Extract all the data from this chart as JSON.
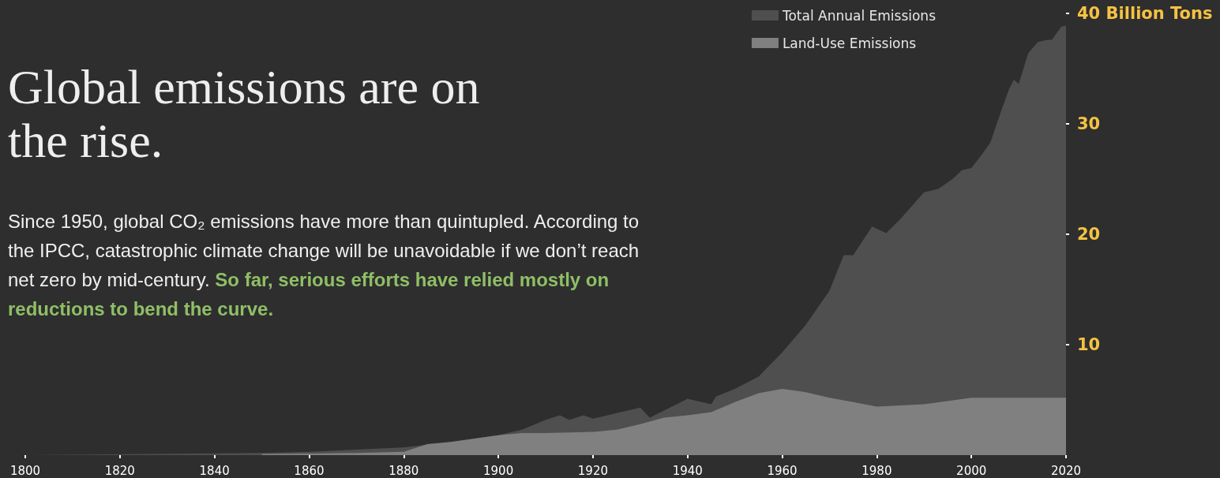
{
  "chart_data": {
    "type": "area",
    "title": "Global emissions are on the rise.",
    "subtitle": "Since 1950, global CO₂ emissions have more than quintupled. According to the IPCC, catastrophic climate change will be unavoidable if we don’t reach net zero by mid-century.",
    "annotations": [
      "So far, serious efforts have relied mostly on reductions to bend the curve."
    ],
    "xlim": [
      1800,
      2020
    ],
    "xticks": [
      1800,
      1820,
      1840,
      1860,
      1880,
      1900,
      1920,
      1940,
      1960,
      1980,
      2000,
      2020
    ],
    "ylim": [
      0,
      40
    ],
    "yticks": [
      10,
      20,
      30,
      {
        "value": 40,
        "label": "40 Billion Tons"
      }
    ],
    "legend": "top right",
    "grid": false,
    "series": [
      {
        "name": "Total Annual Emissions",
        "color": "#4f4f4f",
        "x": [
          1800,
          1850,
          1860,
          1870,
          1880,
          1890,
          1900,
          1905,
          1910,
          1913,
          1915,
          1918,
          1920,
          1925,
          1930,
          1932,
          1940,
          1945,
          1946,
          1950,
          1955,
          1960,
          1965,
          1970,
          1973,
          1975,
          1979,
          1982,
          1985,
          1990,
          1993,
          1996,
          1998,
          2000,
          2002,
          2004,
          2006,
          2008,
          2009,
          2010,
          2012,
          2014,
          2016,
          2017,
          2019,
          2020
        ],
        "values": [
          0,
          0.2,
          0.3,
          0.5,
          0.7,
          1.2,
          1.8,
          2.3,
          3.2,
          3.6,
          3.2,
          3.6,
          3.3,
          3.8,
          4.3,
          3.4,
          5.1,
          4.6,
          5.3,
          6.0,
          7.1,
          9.3,
          11.8,
          14.9,
          18.1,
          18.1,
          20.7,
          20.1,
          21.4,
          23.8,
          24.1,
          25.0,
          25.8,
          26.0,
          27.1,
          28.3,
          30.8,
          33.2,
          34.0,
          33.6,
          36.4,
          37.4,
          37.6,
          37.6,
          38.8,
          38.9
        ]
      },
      {
        "name": "Land-Use Emissions",
        "color": "#808080",
        "x": [
          1850,
          1860,
          1870,
          1880,
          1885,
          1890,
          1895,
          1900,
          1905,
          1910,
          1920,
          1925,
          1930,
          1935,
          1940,
          1945,
          1950,
          1955,
          1960,
          1965,
          1970,
          1975,
          1980,
          1990,
          2000,
          2020
        ],
        "values": [
          0.1,
          0.15,
          0.2,
          0.3,
          1.0,
          1.2,
          1.5,
          1.8,
          2.0,
          2.0,
          2.1,
          2.3,
          2.8,
          3.4,
          3.6,
          3.9,
          4.8,
          5.6,
          6.0,
          5.7,
          5.2,
          4.8,
          4.4,
          4.6,
          5.2,
          5.2
        ]
      }
    ]
  }
}
